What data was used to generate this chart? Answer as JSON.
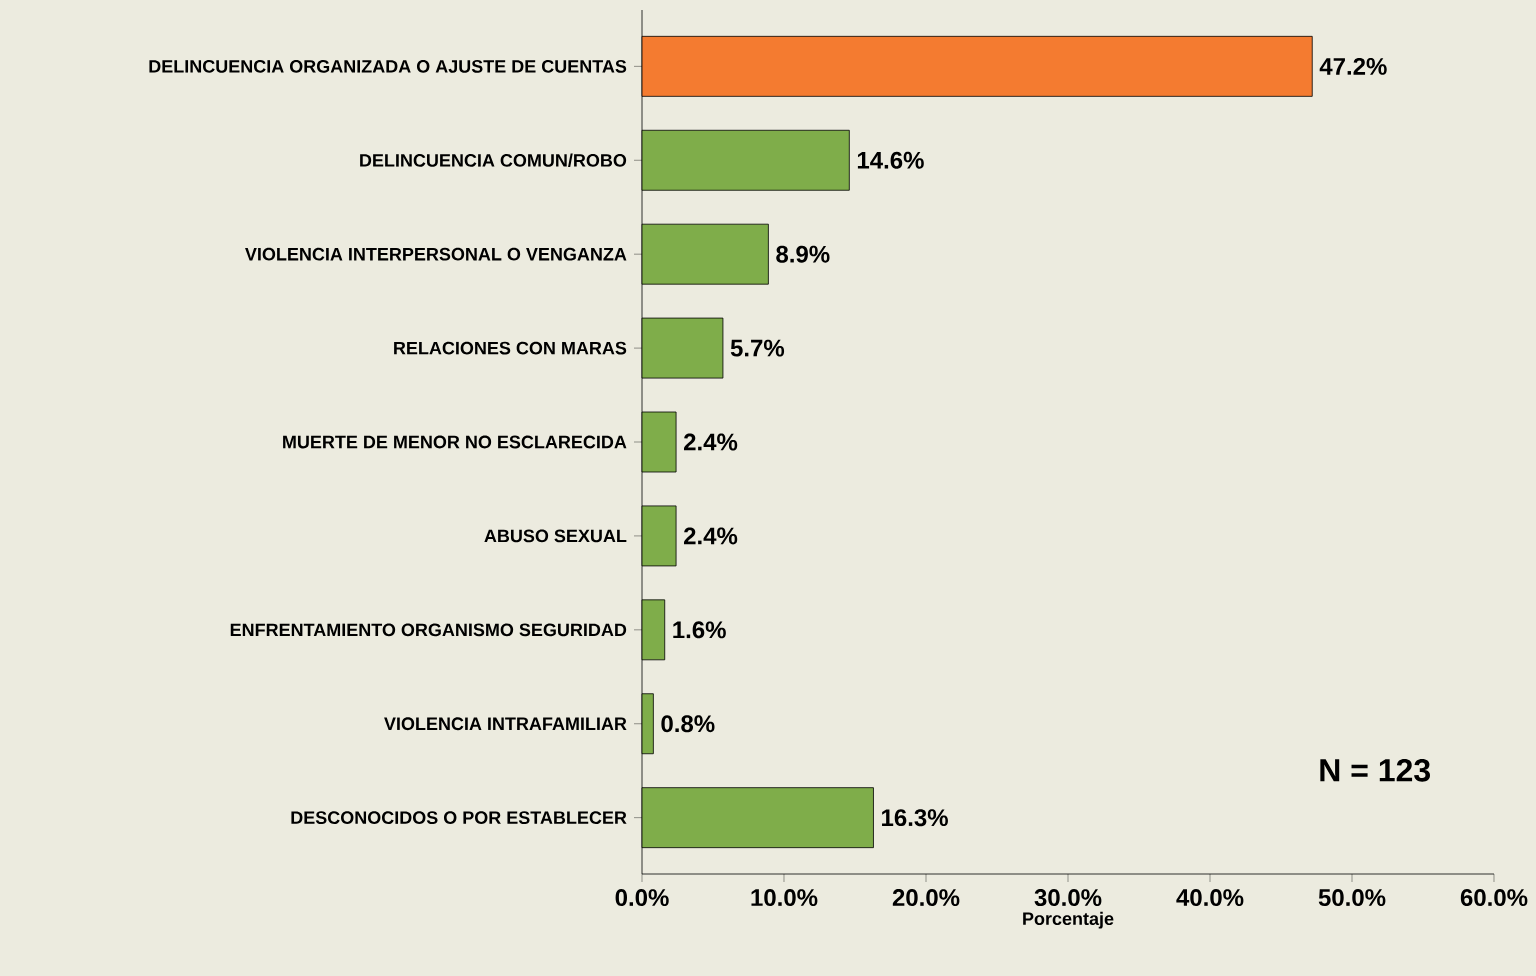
{
  "chart_data": {
    "type": "bar",
    "orientation": "horizontal",
    "xlabel": "Porcentaje",
    "categories": [
      "DELINCUENCIA ORGANIZADA O AJUSTE DE CUENTAS",
      "DELINCUENCIA COMUN/ROBO",
      "VIOLENCIA INTERPERSONAL O VENGANZA",
      "RELACIONES CON MARAS",
      "MUERTE DE MENOR NO ESCLARECIDA",
      "ABUSO SEXUAL",
      "ENFRENTAMIENTO ORGANISMO SEGURIDAD",
      "VIOLENCIA INTRAFAMILIAR",
      "DESCONOCIDOS O POR ESTABLECER"
    ],
    "values": [
      47.2,
      14.6,
      8.9,
      5.7,
      2.4,
      2.4,
      1.6,
      0.8,
      16.3
    ],
    "value_labels": [
      "47.2%",
      "14.6%",
      "8.9%",
      "5.7%",
      "2.4%",
      "2.4%",
      "1.6%",
      "0.8%",
      "16.3%"
    ],
    "colors": [
      "#f47b30",
      "#7fad4a",
      "#7fad4a",
      "#7fad4a",
      "#7fad4a",
      "#7fad4a",
      "#7fad4a",
      "#7fad4a",
      "#7fad4a"
    ],
    "xlim": [
      0,
      60
    ],
    "xticks": [
      {
        "value": 0,
        "label": "0.0%"
      },
      {
        "value": 10,
        "label": "10.0%"
      },
      {
        "value": 20,
        "label": "20.0%"
      },
      {
        "value": 30,
        "label": "30.0%"
      },
      {
        "value": 40,
        "label": "40.0%"
      },
      {
        "value": 50,
        "label": "50.0%"
      },
      {
        "value": 60,
        "label": "60.0%"
      }
    ],
    "annotations": [
      "N = 123"
    ],
    "grid": false
  }
}
